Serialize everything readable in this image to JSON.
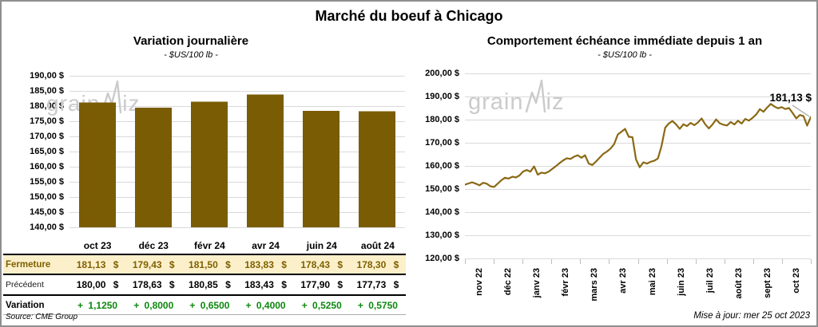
{
  "title": "Marché du boeuf à Chicago",
  "watermark": {
    "part1": "grain",
    "part2": "iz"
  },
  "left_chart": {
    "title": "Variation journalière",
    "subtitle": "- $US/100 lb -"
  },
  "right_chart": {
    "title": "Comportement échéance immédiate depuis 1 an",
    "subtitle": "- $US/100 lb -",
    "annotation": "181,13 $"
  },
  "table": {
    "columns": [
      "oct 23",
      "déc 23",
      "févr 24",
      "avr 24",
      "juin 24",
      "août 24"
    ],
    "rows": [
      {
        "label": "Fermeture",
        "values": [
          "181,13 $",
          "179,43 $",
          "181,50 $",
          "183,83 $",
          "178,43 $",
          "178,30 $"
        ]
      },
      {
        "label": "Précédent",
        "values": [
          "180,00 $",
          "178,63 $",
          "180,85 $",
          "183,43 $",
          "177,90 $",
          "177,73 $"
        ]
      },
      {
        "label": "Variation",
        "values": [
          "+ 1,1250",
          "+ 0,8000",
          "+ 0,6500",
          "+ 0,4000",
          "+ 0,5250",
          "+ 0,5750"
        ]
      }
    ]
  },
  "footer": {
    "source": "Source: CME Group",
    "updated": "Mise à jour: mer 25 oct 2023"
  },
  "colors": {
    "brown": "#7f6000",
    "rowbg": "#fbf0ca",
    "green": "#0e870e",
    "grid": "#d9d9d9",
    "bar": "#7a5c04",
    "line": "#8a6914"
  },
  "chart_data": [
    {
      "type": "bar",
      "title": "Variation journalière",
      "subtitle": "- $US/100 lb -",
      "categories": [
        "oct 23",
        "déc 23",
        "févr 24",
        "avr 24",
        "juin 24",
        "août 24"
      ],
      "values": [
        181.13,
        179.43,
        181.5,
        183.83,
        178.43,
        178.3
      ],
      "ylabel": "$US/100 lb",
      "ylim": [
        140,
        190
      ],
      "ytick_step": 5,
      "ytick_labels": [
        "190,00 $",
        "185,00 $",
        "180,00 $",
        "175,00 $",
        "170,00 $",
        "165,00 $",
        "160,00 $",
        "155,00 $",
        "150,00 $",
        "145,00 $",
        "140,00 $"
      ],
      "grid": true,
      "bar_color": "#7a5c04"
    },
    {
      "type": "line",
      "title": "Comportement échéance immédiate depuis 1 an",
      "subtitle": "- $US/100 lb -",
      "x_labels": [
        "nov 22",
        "déc 22",
        "janv 23",
        "févr 23",
        "mars 23",
        "avr 23",
        "mai 23",
        "juin 23",
        "juil 23",
        "août 23",
        "sept 23",
        "oct 23"
      ],
      "points_per_month": 8,
      "values": [
        151.9,
        152.4,
        152.9,
        152.3,
        151.6,
        152.7,
        152.3,
        151.2,
        150.9,
        152.3,
        153.8,
        154.9,
        154.5,
        155.3,
        155.0,
        155.9,
        157.6,
        158.2,
        157.5,
        159.8,
        156.2,
        157.1,
        156.8,
        157.5,
        158.7,
        159.9,
        161.2,
        162.4,
        163.3,
        163.0,
        164.0,
        164.6,
        163.5,
        164.6,
        161.0,
        160.4,
        161.9,
        163.5,
        165.2,
        166.2,
        167.5,
        169.5,
        173.6,
        174.8,
        176.0,
        172.6,
        172.4,
        162.8,
        159.4,
        161.5,
        161.0,
        161.8,
        162.2,
        163.2,
        168.5,
        176.5,
        178.3,
        179.4,
        177.9,
        176.0,
        178.0,
        177.2,
        178.6,
        177.6,
        178.8,
        180.5,
        178.0,
        176.2,
        177.9,
        180.1,
        178.4,
        177.8,
        177.5,
        179.0,
        177.9,
        179.5,
        178.3,
        180.3,
        179.6,
        180.8,
        182.2,
        184.5,
        183.4,
        185.2,
        186.8,
        185.7,
        184.9,
        185.4,
        184.6,
        185.0,
        182.9,
        180.5,
        182.0,
        181.5,
        177.4,
        181.13
      ],
      "ylabel": "$US/100 lb",
      "ylim": [
        120,
        200
      ],
      "ytick_step": 10,
      "ytick_labels": [
        "200,00 $",
        "190,00 $",
        "180,00 $",
        "170,00 $",
        "160,00 $",
        "150,00 $",
        "140,00 $",
        "130,00 $",
        "120,00 $"
      ],
      "grid": true,
      "line_color": "#8a6914",
      "last_value_label": "181,13 $"
    }
  ]
}
